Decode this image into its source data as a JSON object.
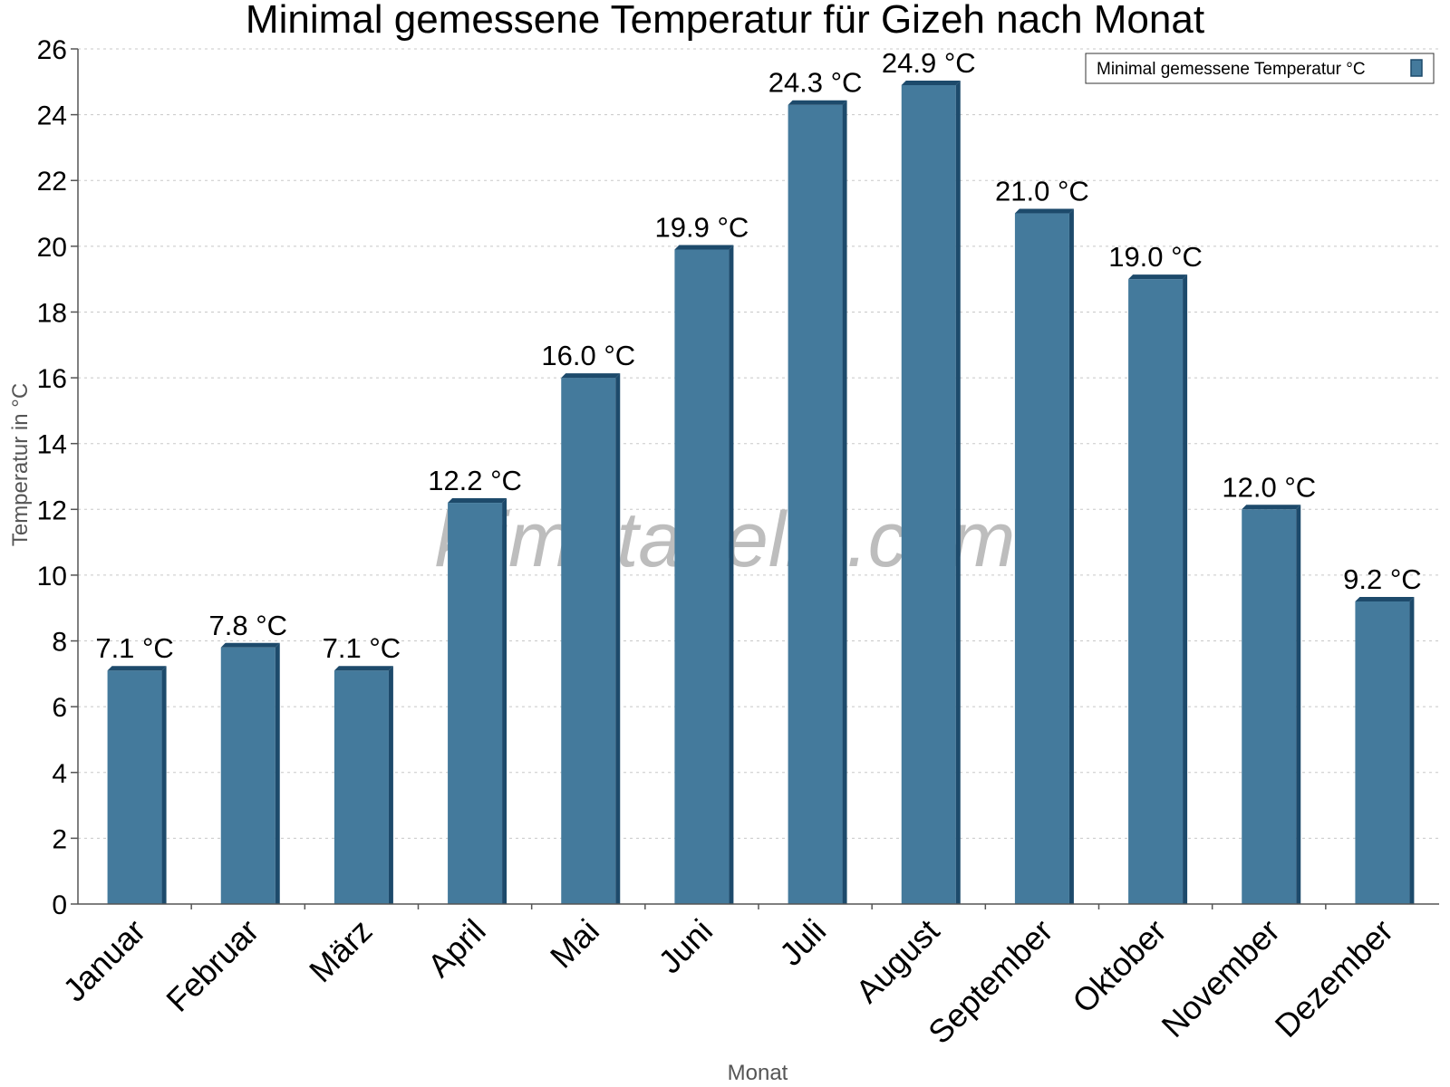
{
  "chart_data": {
    "type": "bar",
    "title": "Minimal gemessene Temperatur für Gizeh nach Monat",
    "xlabel": "Monat",
    "ylabel": "Temperatur in °C",
    "ylim": [
      0,
      26
    ],
    "yticks": [
      0,
      2,
      4,
      6,
      8,
      10,
      12,
      14,
      16,
      18,
      20,
      22,
      24,
      26
    ],
    "grid": true,
    "legend_position": "top-right",
    "categories": [
      "Januar",
      "Februar",
      "März",
      "April",
      "Mai",
      "Juni",
      "Juli",
      "August",
      "September",
      "Oktober",
      "November",
      "Dezember"
    ],
    "series": [
      {
        "name": "Minimal gemessene Temperatur °C",
        "values": [
          7.1,
          7.8,
          7.1,
          12.2,
          16.0,
          19.9,
          24.3,
          24.9,
          21.0,
          19.0,
          12.0,
          9.2
        ],
        "labels": [
          "7.1 °C",
          "7.8 °C",
          "7.1 °C",
          "12.2 °C",
          "16.0 °C",
          "19.9 °C",
          "24.3 °C",
          "24.9 °C",
          "21.0 °C",
          "19.0 °C",
          "12.0 °C",
          "9.2 °C"
        ],
        "color": "#447a9c",
        "edge_color": "#1d4a6b"
      }
    ],
    "watermark": "klimatabelle.com"
  }
}
